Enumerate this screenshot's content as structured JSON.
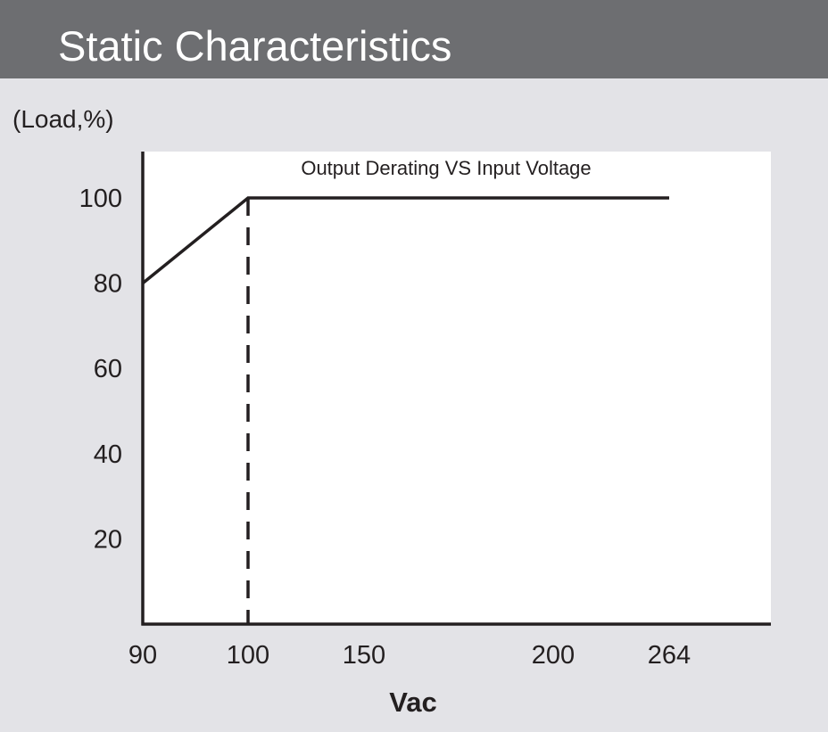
{
  "header": {
    "title": "Static Characteristics"
  },
  "chart_data": {
    "type": "line",
    "title": "Output Derating VS Input Voltage",
    "ylabel": "(Load,%)",
    "xlabel": "Vac",
    "x_ticks": [
      90,
      100,
      150,
      200,
      264
    ],
    "y_ticks": [
      20,
      40,
      60,
      80,
      100
    ],
    "series": [
      {
        "x": [
          90,
          100,
          264
        ],
        "y": [
          80,
          100,
          100
        ]
      }
    ],
    "reference_line": {
      "x": 100,
      "style": "dashed"
    },
    "grid": false,
    "colors": {
      "line": "#231f20",
      "plot_bg": "#ffffff",
      "page_bg": "#e3e3e7",
      "header_bg": "#6d6e71"
    }
  }
}
